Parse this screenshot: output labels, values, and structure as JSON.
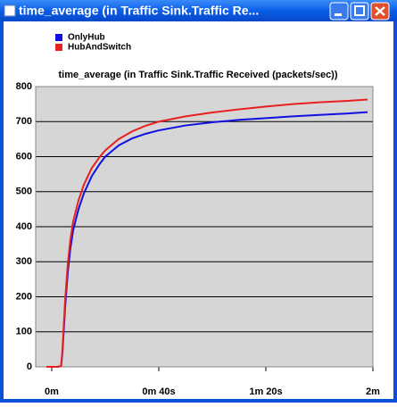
{
  "window": {
    "title": "time_average (in Traffic Sink.Traffic Re..."
  },
  "chart_data": {
    "type": "line",
    "title": "time_average (in Traffic Sink.Traffic Received (packets/sec))",
    "x": [
      -2,
      0,
      2,
      3.5,
      4,
      5,
      6,
      7,
      8,
      10,
      12,
      15,
      18,
      20,
      25,
      30,
      35,
      40,
      50,
      60,
      70,
      80,
      90,
      100,
      110,
      118
    ],
    "series": [
      {
        "name": "OnlyHub",
        "color": "#1010e0",
        "values": [
          0,
          0,
          0,
          2,
          40,
          170,
          270,
          340,
          390,
          450,
          495,
          545,
          580,
          600,
          632,
          652,
          665,
          675,
          689,
          698,
          705,
          710,
          715,
          719,
          723,
          727
        ]
      },
      {
        "name": "HubAndSwitch",
        "color": "#e82020",
        "values": [
          0,
          0,
          0,
          2,
          50,
          190,
          295,
          365,
          415,
          475,
          520,
          568,
          600,
          618,
          650,
          672,
          688,
          700,
          715,
          726,
          735,
          743,
          750,
          755,
          759,
          763
        ]
      }
    ],
    "xlim": [
      -6,
      120
    ],
    "xticks": [
      {
        "value": 0,
        "label": "0m"
      },
      {
        "value": 40,
        "label": "0m 40s"
      },
      {
        "value": 80,
        "label": "1m 20s"
      },
      {
        "value": 120,
        "label": "2m"
      }
    ],
    "ylim": [
      0,
      800
    ],
    "yticks": [
      0,
      100,
      200,
      300,
      400,
      500,
      600,
      700,
      800
    ],
    "grid": true
  }
}
